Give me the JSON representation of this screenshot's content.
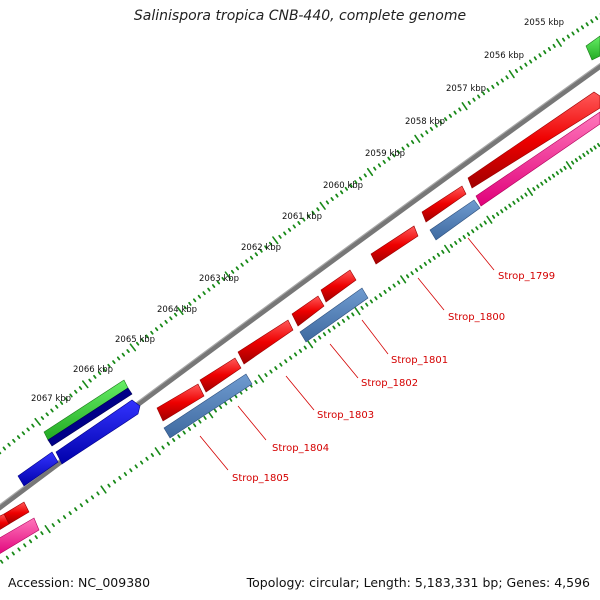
{
  "title": "Salinispora tropica CNB-440, complete genome",
  "accession_text": "Accession: NC_009380",
  "summary_text": "Topology: circular; Length: 5,183,331 bp; Genes: 4,596",
  "colors": {
    "backbone": "#7a7a7a",
    "ticks": "#1a8a1a",
    "forward_gene": "#ee0000",
    "forward_cds": "#ff3399",
    "reverse_gene": "#4a78b0",
    "misc_green": "#33cc33",
    "misc_navy": "#000088",
    "misc_blue": "#0000ee",
    "label": "#d40000"
  },
  "kbp_labels": [
    "2055 kbp",
    "2056 kbp",
    "2057 kbp",
    "2058 kbp",
    "2059 kbp",
    "2060 kbp",
    "2061 kbp",
    "2062 kbp",
    "2063 kbp",
    "2064 kbp",
    "2065 kbp",
    "2066 kbp",
    "2067 kbp"
  ],
  "gene_labels": [
    "Strop_1799",
    "Strop_1800",
    "Strop_1801",
    "Strop_1802",
    "Strop_1803",
    "Strop_1804",
    "Strop_1805"
  ]
}
